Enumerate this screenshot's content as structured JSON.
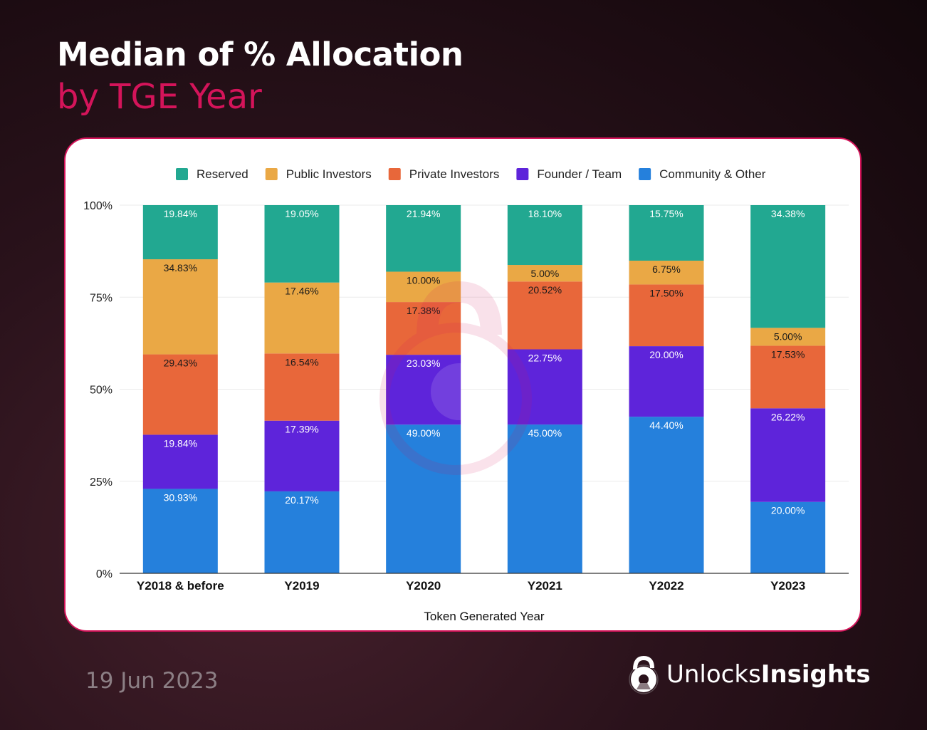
{
  "header": {
    "title": "Median of % Allocation",
    "subtitle": "by TGE Year"
  },
  "footer": {
    "date": "19 Jun 2023",
    "brand_light": "Unlocks",
    "brand_bold": "Insights"
  },
  "chart_data": {
    "type": "bar",
    "stacked": true,
    "normalized": true,
    "title": "",
    "xlabel": "Token Generated Year",
    "ylabel": "",
    "categories": [
      "Y2018 & before",
      "Y2019",
      "Y2020",
      "Y2021",
      "Y2022",
      "Y2023"
    ],
    "yticks": [
      "0%",
      "25%",
      "50%",
      "75%",
      "100%"
    ],
    "ylim": [
      0,
      100
    ],
    "grid": true,
    "legend": "top",
    "series": [
      {
        "name": "Community & Other",
        "color": "#2580dc",
        "label_color": "#ffffff",
        "values": [
          30.93,
          20.17,
          49.0,
          45.0,
          44.4,
          20.0
        ]
      },
      {
        "name": "Founder / Team",
        "color": "#5e24da",
        "label_color": "#ffffff",
        "values": [
          19.84,
          17.39,
          23.03,
          22.75,
          20.0,
          26.22
        ]
      },
      {
        "name": "Private Investors",
        "color": "#e8673a",
        "label_color": "#1a1a1a",
        "values": [
          29.43,
          16.54,
          17.38,
          20.52,
          17.5,
          17.53
        ]
      },
      {
        "name": "Public Investors",
        "color": "#eaa845",
        "label_color": "#1a1a1a",
        "values": [
          34.83,
          17.46,
          10.0,
          5.0,
          6.75,
          5.0
        ]
      },
      {
        "name": "Reserved",
        "color": "#22a891",
        "label_color": "#ffffff",
        "values": [
          19.84,
          19.05,
          21.94,
          18.1,
          15.75,
          34.38
        ]
      }
    ],
    "legend_order": [
      "Reserved",
      "Public Investors",
      "Private Investors",
      "Founder / Team",
      "Community & Other"
    ]
  }
}
